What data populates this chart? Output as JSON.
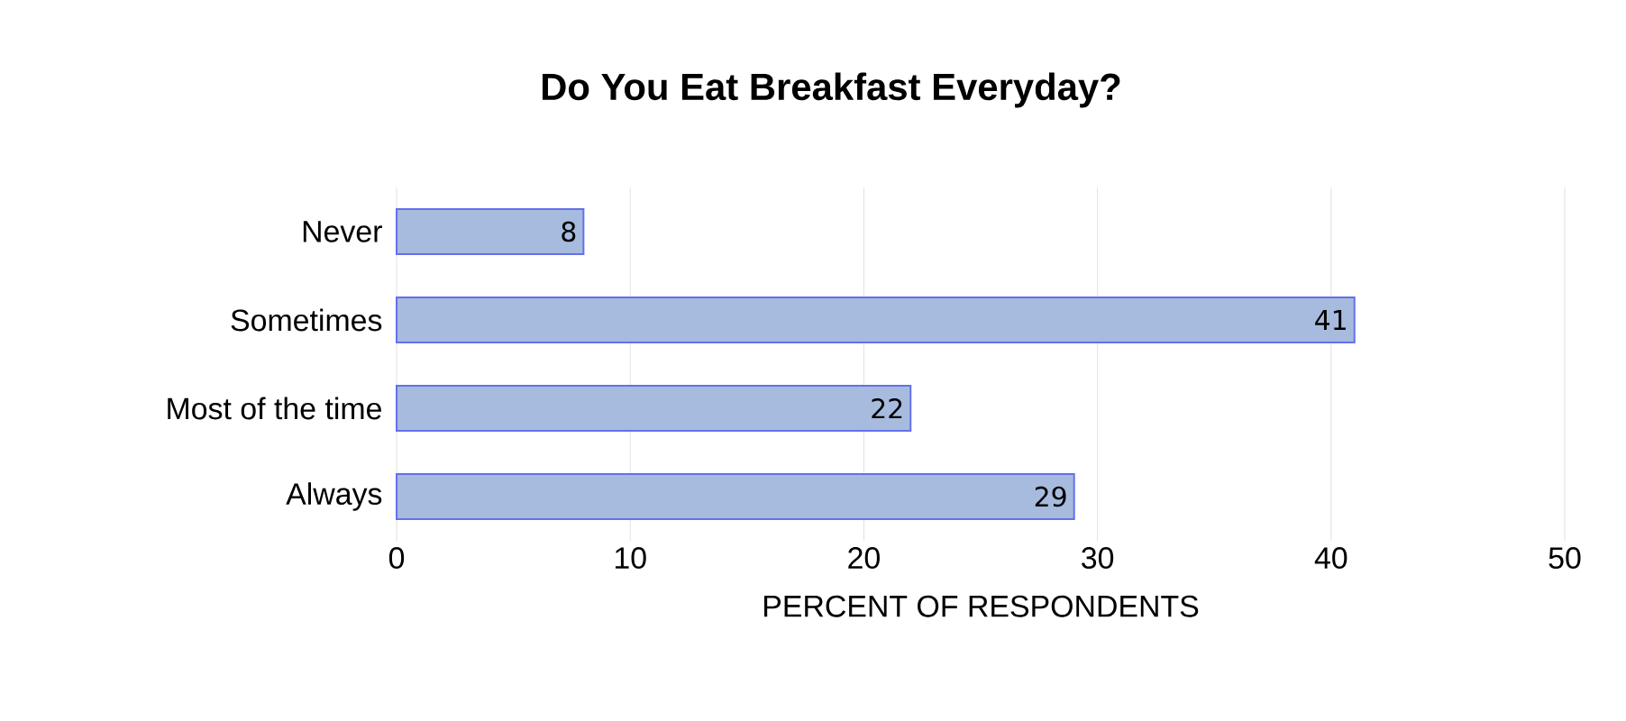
{
  "chart_data": {
    "type": "bar",
    "orientation": "horizontal",
    "title": "Do You Eat Breakfast Everyday?",
    "xlabel": "PERCENT OF RESPONDENTS",
    "categories": [
      "Never",
      "Sometimes",
      "Most of the time",
      "Always"
    ],
    "values": [
      8,
      41,
      22,
      29
    ],
    "color": "#a7bbde",
    "data_labels": true,
    "xlim": [
      0,
      50
    ],
    "xticks": [
      0,
      10,
      20,
      30,
      40,
      50
    ],
    "grid": "x"
  }
}
